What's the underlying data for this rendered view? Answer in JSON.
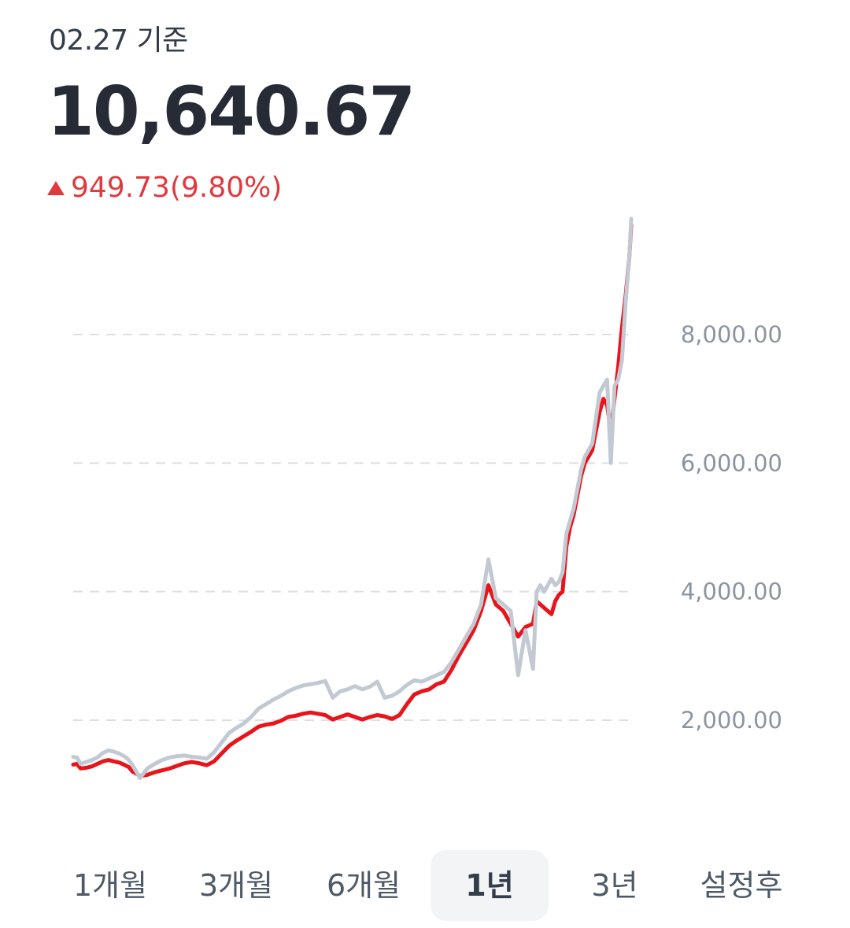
{
  "header": {
    "as_of": "02.27 기준",
    "price": "10,640.67",
    "change": "949.73(9.80%)"
  },
  "colors": {
    "up": "#e0393e",
    "main_line": "#e8141c",
    "compare_line": "#c2c9d3",
    "grid": "#dcdfe3"
  },
  "tabs": [
    {
      "label": "1개월",
      "active": false
    },
    {
      "label": "3개월",
      "active": false
    },
    {
      "label": "6개월",
      "active": false
    },
    {
      "label": "1년",
      "active": true
    },
    {
      "label": "3년",
      "active": false
    },
    {
      "label": "설정후",
      "active": false
    }
  ],
  "chart_data": {
    "type": "line",
    "ylim": [
      0,
      10000
    ],
    "yticks": [
      {
        "value": 2000,
        "label": "2,000.00"
      },
      {
        "value": 4000,
        "label": "4,000.00"
      },
      {
        "value": 6000,
        "label": "6,000.00"
      },
      {
        "value": 8000,
        "label": "8,000.00"
      }
    ],
    "grid": "dashed-horizontal",
    "x": [
      0,
      2,
      4,
      7,
      10,
      13,
      16,
      19,
      22,
      25,
      28,
      30,
      32,
      34,
      36,
      40,
      44,
      48,
      52,
      56,
      60,
      64,
      68,
      72,
      76,
      80,
      84,
      88,
      92,
      96,
      100,
      104,
      108,
      112,
      116,
      120,
      124,
      128,
      132,
      136,
      140,
      144,
      148,
      152,
      156,
      160,
      164,
      168,
      172,
      176,
      180,
      184,
      188,
      192,
      196,
      200,
      204,
      208,
      212,
      216,
      220,
      224,
      228,
      232,
      236,
      240,
      244,
      248,
      250,
      252,
      254,
      256,
      258,
      260,
      262,
      264,
      266,
      268,
      270,
      272,
      274,
      276,
      278,
      280,
      282,
      284,
      286,
      288,
      290,
      292,
      294,
      296,
      298,
      300,
      301
    ],
    "series": [
      {
        "values": [
          1310,
          1320,
          1250,
          1260,
          1280,
          1320,
          1360,
          1380,
          1360,
          1340,
          1300,
          1270,
          1200,
          1170,
          1130,
          1150,
          1190,
          1220,
          1250,
          1290,
          1330,
          1350,
          1330,
          1300,
          1360,
          1480,
          1600,
          1680,
          1750,
          1820,
          1900,
          1930,
          1950,
          1990,
          2050,
          2070,
          2100,
          2120,
          2100,
          2080,
          2010,
          2050,
          2090,
          2050,
          2010,
          2050,
          2080,
          2060,
          2020,
          2080,
          2250,
          2400,
          2450,
          2480,
          2560,
          2600,
          2780,
          3000,
          3200,
          3400,
          3700,
          4100,
          3800,
          3700,
          3500,
          3300,
          3450,
          3500,
          3850,
          3800,
          3750,
          3700,
          3650,
          3850,
          3950,
          4000,
          4700,
          5000,
          5200,
          5500,
          5800,
          6000,
          6100,
          6200,
          6500,
          6800,
          7000,
          6900,
          6500,
          7000,
          7500,
          8100,
          8600,
          9200,
          9700
        ]
      },
      {
        "values": [
          1430,
          1420,
          1320,
          1350,
          1380,
          1420,
          1490,
          1530,
          1510,
          1480,
          1430,
          1380,
          1300,
          1200,
          1100,
          1250,
          1320,
          1380,
          1420,
          1440,
          1450,
          1430,
          1420,
          1400,
          1500,
          1650,
          1800,
          1880,
          1950,
          2050,
          2180,
          2250,
          2320,
          2380,
          2450,
          2500,
          2540,
          2560,
          2580,
          2610,
          2350,
          2450,
          2480,
          2530,
          2480,
          2520,
          2600,
          2350,
          2380,
          2450,
          2550,
          2620,
          2600,
          2650,
          2700,
          2750,
          2900,
          3100,
          3300,
          3500,
          3800,
          4500,
          3900,
          3800,
          3700,
          2700,
          3400,
          2800,
          4000,
          4100,
          4000,
          4100,
          4200,
          4100,
          4150,
          4300,
          4900,
          5100,
          5300,
          5600,
          5900,
          6100,
          6200,
          6300,
          6700,
          7100,
          7200,
          7300,
          6000,
          7200,
          7300,
          7600,
          8500,
          9200,
          9800
        ]
      }
    ]
  }
}
